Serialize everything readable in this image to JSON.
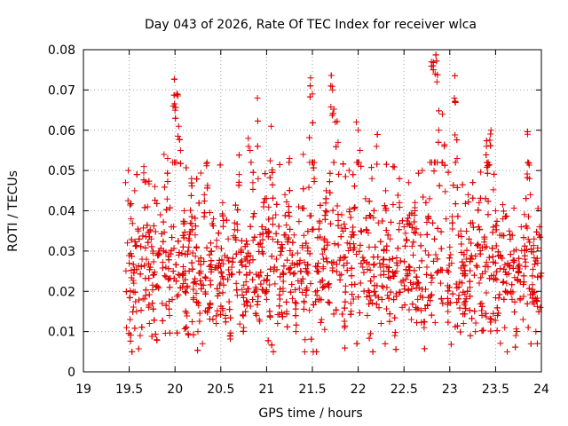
{
  "chart_data": {
    "type": "scatter",
    "title": "Day 043 of 2026, Rate Of TEC Index for receiver wlca",
    "xlabel": "GPS time / hours",
    "ylabel": "ROTI / TECUs",
    "xlim": [
      19,
      24
    ],
    "ylim": [
      0,
      0.08
    ],
    "x_ticks": [
      19,
      19.5,
      20,
      20.5,
      21,
      21.5,
      22,
      22.5,
      23,
      23.5,
      24
    ],
    "x_tick_labels": [
      "19",
      "19.5",
      "20",
      "20.5",
      "21",
      "21.5",
      "22",
      "22.5",
      "23",
      "23.5",
      "24"
    ],
    "y_ticks": [
      0,
      0.01,
      0.02,
      0.03,
      0.04,
      0.05,
      0.06,
      0.07,
      0.08
    ],
    "y_tick_labels": [
      "0",
      "0.01",
      "0.02",
      "0.03",
      "0.04",
      "0.05",
      "0.06",
      "0.07",
      "0.08"
    ],
    "grid": true,
    "marker": "+",
    "marker_color": "#e00000",
    "data_start_hour": 19.45,
    "data_end_hour": 24,
    "series": [
      {
        "name": "ROTI",
        "points": [
          [
            19.46,
            0.047
          ],
          [
            19.47,
            0.011
          ],
          [
            19.48,
            0.032
          ],
          [
            19.49,
            0.05
          ],
          [
            19.5,
            0.027
          ],
          [
            19.51,
            0.013
          ],
          [
            19.52,
            0.038
          ],
          [
            19.53,
            0.005
          ],
          [
            19.55,
            0.022
          ],
          [
            19.56,
            0.045
          ],
          [
            19.58,
            0.015
          ],
          [
            19.6,
            0.035
          ],
          [
            19.62,
            0.009
          ],
          [
            19.64,
            0.028
          ],
          [
            19.66,
            0.051
          ],
          [
            19.68,
            0.019
          ],
          [
            19.7,
            0.041
          ],
          [
            19.72,
            0.012
          ],
          [
            19.74,
            0.033
          ],
          [
            19.76,
            0.024
          ],
          [
            19.78,
            0.046
          ],
          [
            19.8,
            0.008
          ],
          [
            19.82,
            0.029
          ],
          [
            19.84,
            0.039
          ],
          [
            19.86,
            0.017
          ],
          [
            19.88,
            0.054
          ],
          [
            19.9,
            0.026
          ],
          [
            19.92,
            0.053
          ],
          [
            19.94,
            0.014
          ],
          [
            19.96,
            0.036
          ],
          [
            19.98,
            0.066
          ],
          [
            20.0,
            0.065
          ],
          [
            20.02,
            0.069
          ],
          [
            20.04,
            0.061
          ],
          [
            20.06,
            0.055
          ],
          [
            20.08,
            0.021
          ],
          [
            20.1,
            0.04
          ],
          [
            20.12,
            0.011
          ],
          [
            20.15,
            0.031
          ],
          [
            20.18,
            0.048
          ],
          [
            20.2,
            0.018
          ],
          [
            20.22,
            0.034
          ],
          [
            20.25,
            0.01
          ],
          [
            20.28,
            0.025
          ],
          [
            20.3,
            0.007
          ],
          [
            20.32,
            0.044
          ],
          [
            20.35,
            0.052
          ],
          [
            20.38,
            0.016
          ],
          [
            20.4,
            0.03
          ],
          [
            20.42,
            0.038
          ],
          [
            20.45,
            0.012
          ],
          [
            20.48,
            0.027
          ],
          [
            20.5,
            0.022
          ],
          [
            20.52,
            0.042
          ],
          [
            20.55,
            0.014
          ],
          [
            20.58,
            0.033
          ],
          [
            20.6,
            0.009
          ],
          [
            20.62,
            0.026
          ],
          [
            20.65,
            0.037
          ],
          [
            20.68,
            0.019
          ],
          [
            20.7,
            0.049
          ],
          [
            20.72,
            0.03
          ],
          [
            20.75,
            0.011
          ],
          [
            20.78,
            0.024
          ],
          [
            20.8,
            0.058
          ],
          [
            20.82,
            0.055
          ],
          [
            20.85,
            0.047
          ],
          [
            20.88,
            0.021
          ],
          [
            20.9,
            0.068
          ],
          [
            20.92,
            0.013
          ],
          [
            20.95,
            0.031
          ],
          [
            20.98,
            0.043
          ],
          [
            21.0,
            0.018
          ],
          [
            21.02,
            0.035
          ],
          [
            21.05,
            0.061
          ],
          [
            21.08,
            0.025
          ],
          [
            21.1,
            0.039
          ],
          [
            21.12,
            0.012
          ],
          [
            21.15,
            0.029
          ],
          [
            21.18,
            0.02
          ],
          [
            21.2,
            0.044
          ],
          [
            21.22,
            0.015
          ],
          [
            21.25,
            0.053
          ],
          [
            21.28,
            0.027
          ],
          [
            21.3,
            0.034
          ],
          [
            21.32,
            0.01
          ],
          [
            21.35,
            0.041
          ],
          [
            21.38,
            0.022
          ],
          [
            21.4,
            0.054
          ],
          [
            21.42,
            0.008
          ],
          [
            21.45,
            0.03
          ],
          [
            21.48,
            0.073
          ],
          [
            21.5,
            0.069
          ],
          [
            21.52,
            0.048
          ],
          [
            21.55,
            0.019
          ],
          [
            21.58,
            0.037
          ],
          [
            21.6,
            0.013
          ],
          [
            21.62,
            0.028
          ],
          [
            21.65,
            0.045
          ],
          [
            21.68,
            0.021
          ],
          [
            21.7,
            0.071
          ],
          [
            21.72,
            0.07
          ],
          [
            21.75,
            0.062
          ],
          [
            21.78,
            0.057
          ],
          [
            21.8,
            0.024
          ],
          [
            21.82,
            0.039
          ],
          [
            21.85,
            0.011
          ],
          [
            21.88,
            0.032
          ],
          [
            21.9,
            0.05
          ],
          [
            21.92,
            0.017
          ],
          [
            21.95,
            0.034
          ],
          [
            21.98,
            0.062
          ],
          [
            22.0,
            0.06
          ],
          [
            22.02,
            0.055
          ],
          [
            22.05,
            0.026
          ],
          [
            22.08,
            0.043
          ],
          [
            22.1,
            0.014
          ],
          [
            22.12,
            0.031
          ],
          [
            22.15,
            0.048
          ],
          [
            22.18,
            0.02
          ],
          [
            22.2,
            0.056
          ],
          [
            22.22,
            0.037
          ],
          [
            22.25,
            0.012
          ],
          [
            22.28,
            0.028
          ],
          [
            22.3,
            0.045
          ],
          [
            22.32,
            0.019
          ],
          [
            22.35,
            0.033
          ],
          [
            22.38,
            0.051
          ],
          [
            22.4,
            0.009
          ],
          [
            22.42,
            0.025
          ],
          [
            22.45,
            0.042
          ],
          [
            22.48,
            0.016
          ],
          [
            22.5,
            0.036
          ],
          [
            22.52,
            0.023
          ],
          [
            22.55,
            0.047
          ],
          [
            22.58,
            0.013
          ],
          [
            22.6,
            0.029
          ],
          [
            22.62,
            0.04
          ],
          [
            22.65,
            0.018
          ],
          [
            22.68,
            0.034
          ],
          [
            22.7,
            0.05
          ],
          [
            22.72,
            0.011
          ],
          [
            22.75,
            0.026
          ],
          [
            22.78,
            0.043
          ],
          [
            22.8,
            0.077
          ],
          [
            22.82,
            0.076
          ],
          [
            22.84,
            0.074
          ],
          [
            22.86,
            0.072
          ],
          [
            22.88,
            0.06
          ],
          [
            22.9,
            0.022
          ],
          [
            22.92,
            0.064
          ],
          [
            22.94,
            0.056
          ],
          [
            22.96,
            0.038
          ],
          [
            22.98,
            0.015
          ],
          [
            23.0,
            0.031
          ],
          [
            23.02,
            0.027
          ],
          [
            23.05,
            0.068
          ],
          [
            23.08,
            0.053
          ],
          [
            23.1,
            0.019
          ],
          [
            23.12,
            0.035
          ],
          [
            23.15,
            0.012
          ],
          [
            23.18,
            0.028
          ],
          [
            23.2,
            0.044
          ],
          [
            23.22,
            0.021
          ],
          [
            23.25,
            0.037
          ],
          [
            23.28,
            0.01
          ],
          [
            23.3,
            0.026
          ],
          [
            23.32,
            0.042
          ],
          [
            23.35,
            0.017
          ],
          [
            23.38,
            0.033
          ],
          [
            23.4,
            0.056
          ],
          [
            23.42,
            0.052
          ],
          [
            23.45,
            0.06
          ],
          [
            23.48,
            0.024
          ],
          [
            23.5,
            0.04
          ],
          [
            23.52,
            0.014
          ],
          [
            23.55,
            0.029
          ],
          [
            23.58,
            0.038
          ],
          [
            23.6,
            0.011
          ],
          [
            23.62,
            0.022
          ],
          [
            23.65,
            0.035
          ],
          [
            23.68,
            0.018
          ],
          [
            23.7,
            0.03
          ],
          [
            23.72,
            0.009
          ],
          [
            23.75,
            0.025
          ],
          [
            23.78,
            0.036
          ],
          [
            23.8,
            0.013
          ],
          [
            23.82,
            0.028
          ],
          [
            23.85,
            0.059
          ],
          [
            23.87,
            0.048
          ],
          [
            23.88,
            0.044
          ],
          [
            23.9,
            0.02
          ],
          [
            23.92,
            0.033
          ],
          [
            23.94,
            0.01
          ],
          [
            23.96,
            0.027
          ],
          [
            23.98,
            0.036
          ],
          [
            23.99,
            0.016
          ]
        ]
      }
    ]
  }
}
